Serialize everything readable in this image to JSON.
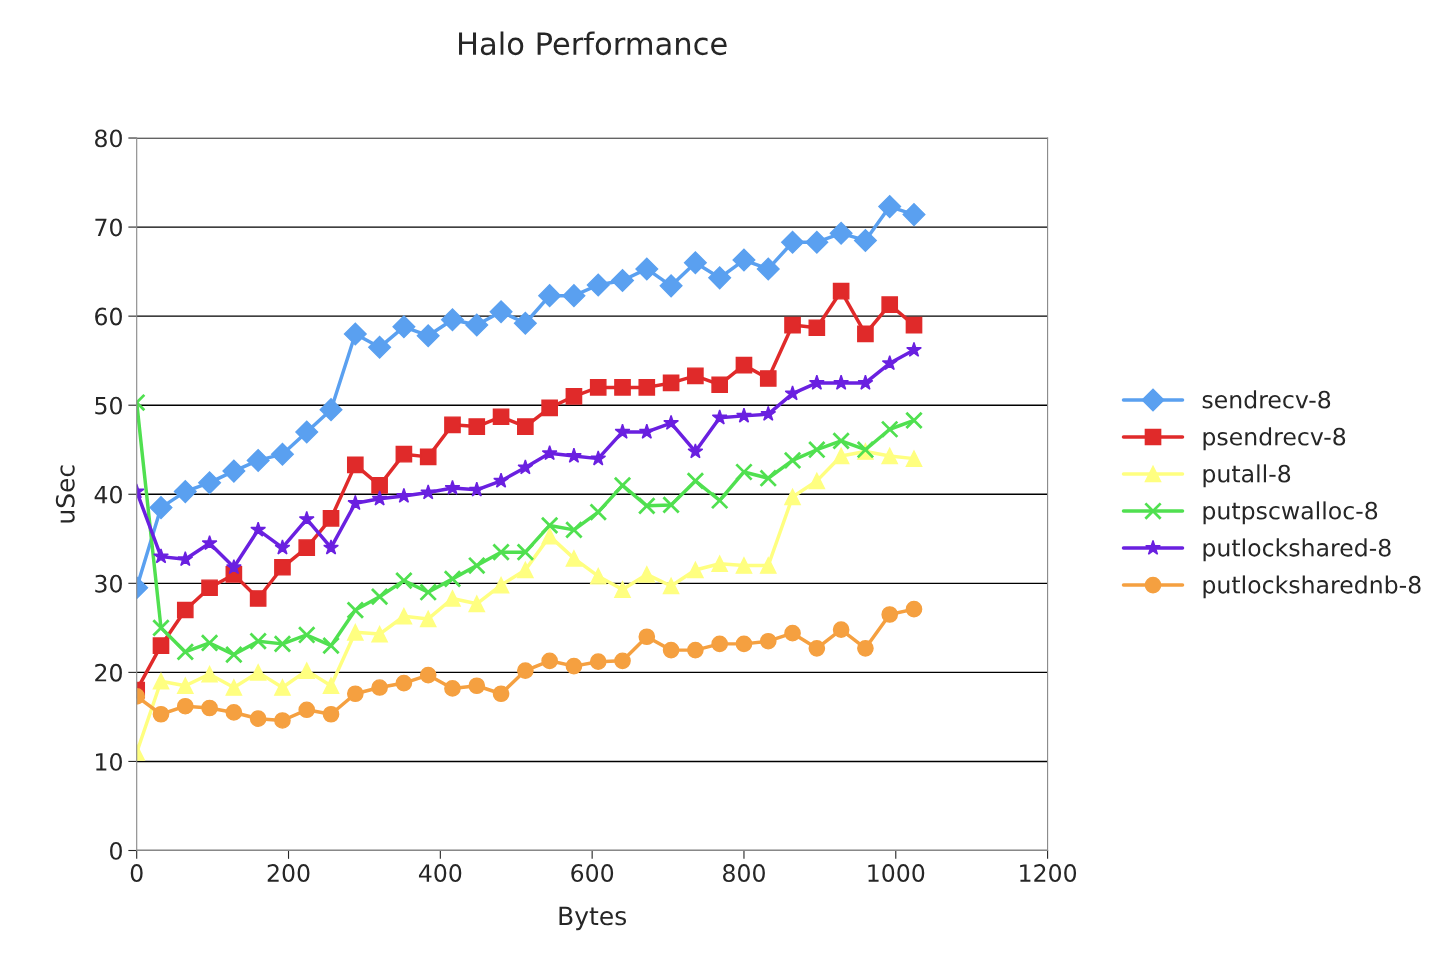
{
  "chart_data": {
    "type": "line",
    "title": "Halo Performance",
    "xlabel": "Bytes",
    "ylabel": "uSec",
    "x": [
      0,
      32,
      64,
      96,
      128,
      160,
      192,
      224,
      256,
      288,
      320,
      352,
      384,
      416,
      448,
      480,
      512,
      544,
      576,
      608,
      640,
      672,
      704,
      736,
      768,
      800,
      832,
      864,
      896,
      928,
      960,
      992,
      1024
    ],
    "series": [
      {
        "name": "sendrecv-8",
        "color": "#5aa0f0",
        "marker": "diamond",
        "values": [
          29.5,
          38.5,
          40.3,
          41.3,
          42.6,
          43.8,
          44.5,
          47,
          49.5,
          58,
          56.5,
          58.8,
          57.8,
          59.6,
          59,
          60.5,
          59.2,
          62.3,
          62.3,
          63.5,
          64,
          65.3,
          63.4,
          66,
          64.3,
          66.3,
          65.3,
          68.3,
          68.3,
          69.3,
          68.5,
          72.3,
          71.4
        ]
      },
      {
        "name": "psendrecv-8",
        "color": "#e02a2a",
        "marker": "square",
        "values": [
          18,
          23,
          27,
          29.5,
          31,
          28.3,
          31.8,
          34,
          37.3,
          43.3,
          41,
          44.5,
          44.2,
          47.8,
          47.6,
          48.7,
          47.6,
          49.7,
          51,
          52,
          52,
          52,
          52.5,
          53.3,
          52.3,
          54.5,
          53,
          59,
          58.7,
          62.8,
          58,
          61.3,
          59
        ]
      },
      {
        "name": "putall-8",
        "color": "#ffff80",
        "marker": "triangle",
        "values": [
          11,
          19,
          18.5,
          19.8,
          18.3,
          20,
          18.3,
          20.2,
          18.5,
          24.5,
          24.3,
          26.3,
          26,
          28.3,
          27.7,
          29.8,
          31.5,
          35.3,
          32.8,
          30.8,
          29.3,
          31,
          29.7,
          31.5,
          32.2,
          32,
          32,
          39.7,
          41.5,
          44.3,
          44.8,
          44.3,
          44
        ]
      },
      {
        "name": "putpscwalloc-8",
        "color": "#50e050",
        "marker": "cross",
        "values": [
          50.3,
          25,
          22.3,
          23.3,
          22,
          23.5,
          23.2,
          24.2,
          23,
          27,
          28.5,
          30.3,
          29,
          30.5,
          32,
          33.5,
          33.5,
          36.5,
          36,
          38,
          41,
          38.7,
          38.8,
          41.5,
          39.3,
          42.5,
          41.8,
          43.8,
          45,
          46,
          45,
          47.3,
          48.3
        ]
      },
      {
        "name": "putlockshared-8",
        "color": "#6a20e0",
        "marker": "star",
        "values": [
          40.3,
          33,
          32.7,
          34.5,
          31.8,
          36,
          34,
          37.2,
          34,
          39,
          39.5,
          39.8,
          40.2,
          40.7,
          40.5,
          41.5,
          43,
          44.6,
          44.3,
          44,
          47,
          47,
          48,
          44.8,
          48.6,
          48.8,
          49,
          51.3,
          52.5,
          52.5,
          52.5,
          54.7,
          56.2
        ]
      },
      {
        "name": "putlocksharednb-8",
        "color": "#f5a040",
        "marker": "circle",
        "values": [
          17.3,
          15.3,
          16.2,
          16,
          15.5,
          14.8,
          14.6,
          15.8,
          15.3,
          17.6,
          18.3,
          18.8,
          19.7,
          18.2,
          18.5,
          17.6,
          20.2,
          21.3,
          20.7,
          21.2,
          21.3,
          24,
          22.5,
          22.5,
          23.2,
          23.2,
          23.5,
          24.4,
          22.7,
          24.8,
          22.7,
          26.5,
          27.1
        ]
      }
    ],
    "xlim": [
      0,
      1200
    ],
    "xticks": [
      0,
      200,
      400,
      600,
      800,
      1000,
      1200
    ],
    "ylim": [
      0,
      80
    ],
    "yticks": [
      0,
      10,
      20,
      30,
      40,
      50,
      60,
      70,
      80
    ],
    "grid": "y",
    "legend": "right"
  }
}
